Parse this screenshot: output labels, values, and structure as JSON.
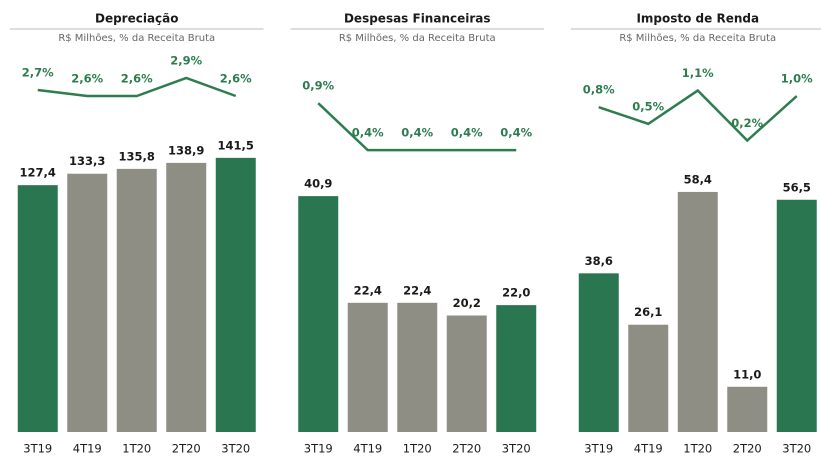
{
  "chart_data": [
    {
      "type": "bar-line",
      "title": "Depreciação",
      "subtitle": "R$ Milhões, % da Receita Bruta",
      "categories": [
        "3T19",
        "4T19",
        "1T20",
        "2T20",
        "3T20"
      ],
      "series": [
        {
          "name": null,
          "type": "bar",
          "colors": [
            "#2a7650",
            "#8f8e85",
            "#8f8e85",
            "#8f8e85",
            "#2a7650"
          ],
          "values": [
            127.4,
            133.3,
            135.8,
            138.9,
            141.5
          ],
          "value_labels": [
            "127,4",
            "133,3",
            "135,8",
            "138,9",
            "141,5"
          ]
        },
        {
          "name": null,
          "type": "line",
          "axis": "y2",
          "color": "#2e7d4f",
          "values": [
            2.7,
            2.6,
            2.6,
            2.9,
            2.6
          ],
          "value_labels": [
            "2,7%",
            "2,6%",
            "2,6%",
            "2,9%",
            "2,6%"
          ]
        }
      ],
      "ylim": [
        0,
        192
      ],
      "y2lim": [
        -3.0,
        3.2
      ]
    },
    {
      "type": "bar-line",
      "title": "Despesas Financeiras",
      "subtitle": "R$ Milhões, % da Receita Bruta",
      "categories": [
        "3T19",
        "4T19",
        "1T20",
        "2T20",
        "3T20"
      ],
      "series": [
        {
          "name": null,
          "type": "bar",
          "colors": [
            "#2a7650",
            "#8f8e85",
            "#8f8e85",
            "#8f8e85",
            "#2a7650"
          ],
          "values": [
            40.9,
            22.4,
            22.4,
            20.2,
            22.0
          ],
          "value_labels": [
            "40,9",
            "22,4",
            "22,4",
            "20,2",
            "22,0"
          ]
        },
        {
          "name": null,
          "type": "line",
          "axis": "y2",
          "color": "#2e7d4f",
          "values": [
            0.9,
            0.4,
            0.4,
            0.4,
            0.4
          ],
          "value_labels": [
            "0,9%",
            "0,4%",
            "0,4%",
            "0,4%",
            "0,4%"
          ]
        }
      ],
      "ylim": [
        0,
        64.5
      ],
      "y2lim": [
        -2.6,
        1.36
      ]
    },
    {
      "type": "bar-line",
      "title": "Imposto de Renda",
      "subtitle": "R$ Milhões, % da Receita Bruta",
      "categories": [
        "3T19",
        "4T19",
        "1T20",
        "2T20",
        "3T20"
      ],
      "series": [
        {
          "name": null,
          "type": "bar",
          "colors": [
            "#2a7650",
            "#8f8e85",
            "#8f8e85",
            "#8f8e85",
            "#2a7650"
          ],
          "values": [
            38.6,
            26.1,
            58.4,
            11.0,
            56.5
          ],
          "value_labels": [
            "38,6",
            "26,1",
            "58,4",
            "11,0",
            "56,5"
          ]
        },
        {
          "name": null,
          "type": "line",
          "axis": "y2",
          "color": "#2e7d4f",
          "values": [
            0.8,
            0.5,
            1.1,
            0.2,
            1.0
          ],
          "value_labels": [
            "0,8%",
            "0,5%",
            "1,1%",
            "0,2%",
            "1,0%"
          ]
        }
      ],
      "ylim": [
        0,
        90.5
      ],
      "y2lim": [
        -5.05,
        1.65
      ]
    }
  ]
}
